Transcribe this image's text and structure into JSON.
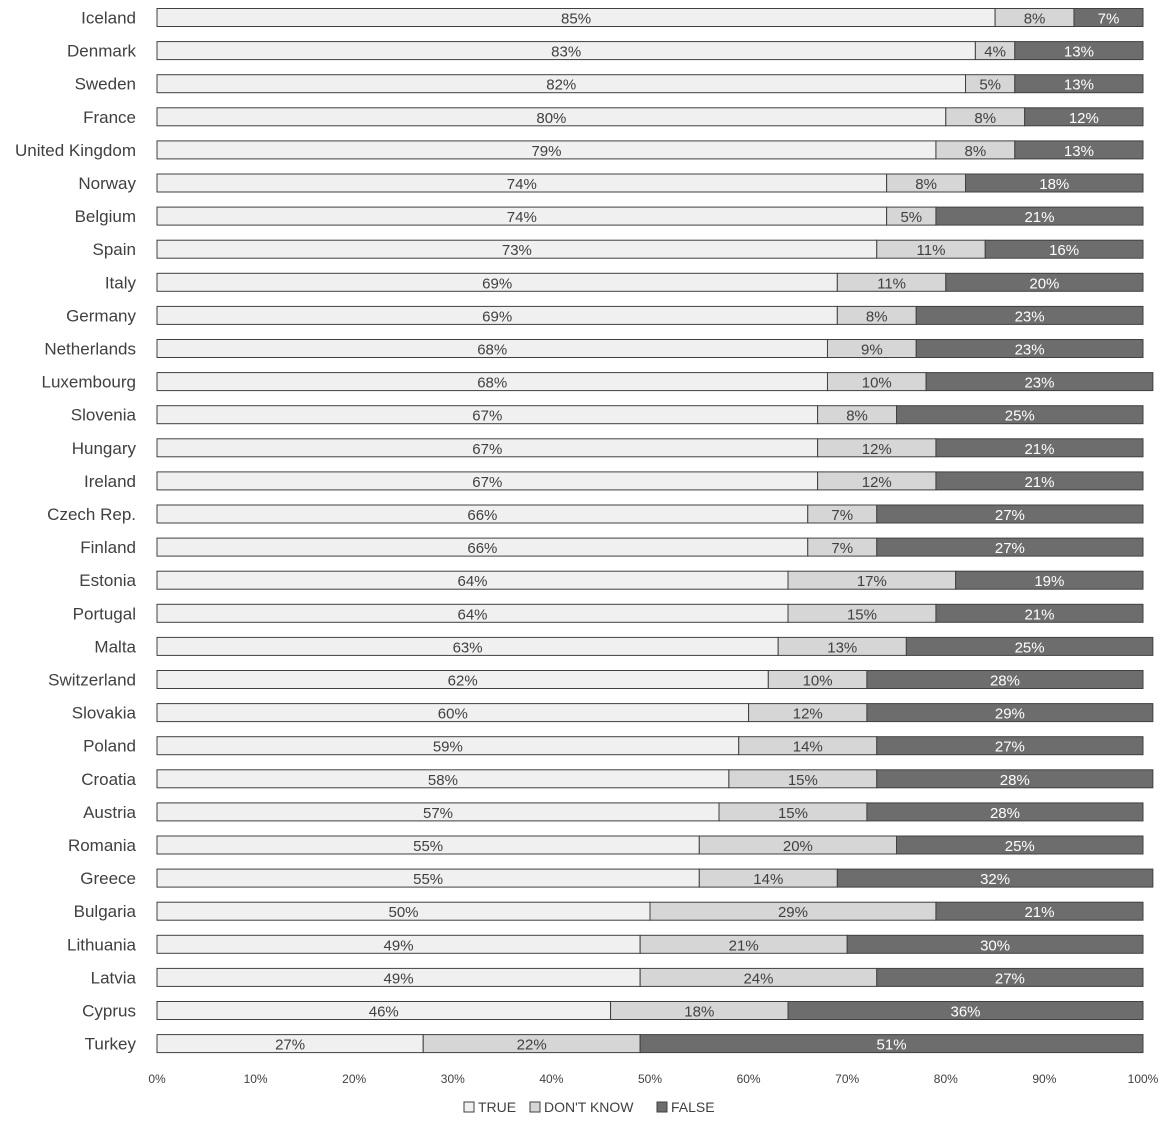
{
  "chart_data": {
    "type": "bar",
    "orientation": "horizontal",
    "stacked": true,
    "title": "",
    "xlabel": "",
    "ylabel": "",
    "xlim": [
      0,
      100
    ],
    "x_ticks": [
      "0%",
      "10%",
      "20%",
      "30%",
      "40%",
      "50%",
      "60%",
      "70%",
      "80%",
      "90%",
      "100%"
    ],
    "categories": [
      "Iceland",
      "Denmark",
      "Sweden",
      "France",
      "United Kingdom",
      "Norway",
      "Belgium",
      "Spain",
      "Italy",
      "Germany",
      "Netherlands",
      "Luxembourg",
      "Slovenia",
      "Hungary",
      "Ireland",
      "Czech Rep.",
      "Finland",
      "Estonia",
      "Portugal",
      "Malta",
      "Switzerland",
      "Slovakia",
      "Poland",
      "Croatia",
      "Austria",
      "Romania",
      "Greece",
      "Bulgaria",
      "Lithuania",
      "Latvia",
      "Cyprus",
      "Turkey"
    ],
    "series": [
      {
        "name": "TRUE",
        "color": "#f0f0f0",
        "label_color": "#404040",
        "values": [
          85,
          83,
          82,
          80,
          79,
          74,
          74,
          73,
          69,
          69,
          68,
          68,
          67,
          67,
          67,
          66,
          66,
          64,
          64,
          63,
          62,
          60,
          59,
          58,
          57,
          55,
          55,
          50,
          49,
          49,
          46,
          27
        ]
      },
      {
        "name": "DON'T KNOW",
        "color": "#d6d6d6",
        "label_color": "#404040",
        "values": [
          8,
          4,
          5,
          8,
          8,
          8,
          5,
          11,
          11,
          8,
          9,
          10,
          8,
          12,
          12,
          7,
          7,
          17,
          15,
          13,
          10,
          12,
          14,
          15,
          15,
          20,
          14,
          29,
          21,
          24,
          18,
          22
        ]
      },
      {
        "name": "FALSE",
        "color": "#6d6d6d",
        "label_color": "#ffffff",
        "values": [
          7,
          13,
          13,
          12,
          13,
          18,
          21,
          16,
          20,
          23,
          23,
          23,
          25,
          21,
          21,
          27,
          27,
          19,
          21,
          25,
          28,
          29,
          27,
          28,
          28,
          25,
          32,
          21,
          30,
          27,
          36,
          51
        ]
      }
    ],
    "legend": {
      "position": "bottom-center",
      "items": [
        "TRUE",
        "DON'T KNOW",
        "FALSE"
      ]
    },
    "colors": {
      "border": "#404040",
      "axis_text": "#404040",
      "category_text": "#404040"
    }
  }
}
